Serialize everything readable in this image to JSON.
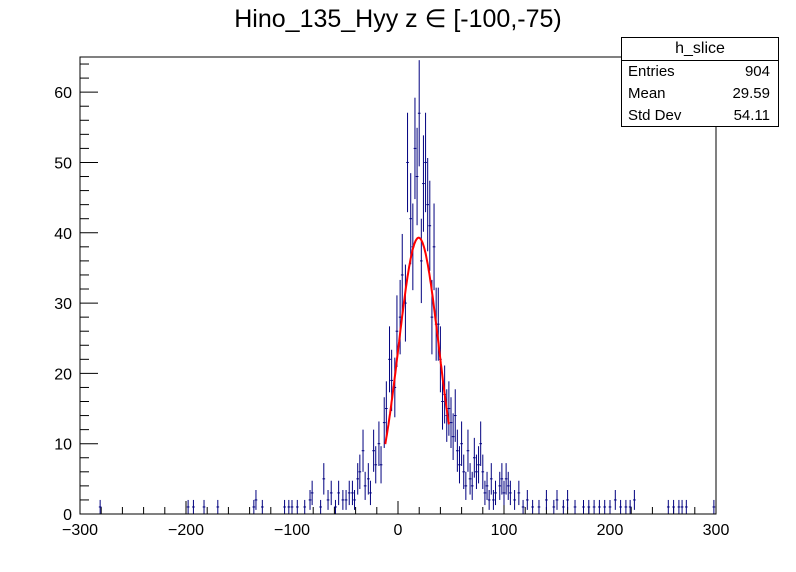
{
  "chart_data": {
    "type": "histogram",
    "title": "Hino_135_Hyy z  ∈ [-100,-75)",
    "xlim": [
      -300,
      300
    ],
    "ylim": [
      0,
      65
    ],
    "x_ticks": [
      -300,
      -200,
      -100,
      0,
      100,
      200,
      300
    ],
    "y_ticks": [
      0,
      10,
      20,
      30,
      40,
      50,
      60
    ],
    "bin_width": 2.5,
    "bins": [
      {
        "x": -281,
        "y": 1
      },
      {
        "x": -198,
        "y": 1
      },
      {
        "x": -193,
        "y": 1
      },
      {
        "x": -183,
        "y": 1
      },
      {
        "x": -170,
        "y": 1
      },
      {
        "x": -136,
        "y": 1
      },
      {
        "x": -134,
        "y": 2
      },
      {
        "x": -128,
        "y": 1
      },
      {
        "x": -107,
        "y": 1
      },
      {
        "x": -103,
        "y": 1
      },
      {
        "x": -100,
        "y": 1
      },
      {
        "x": -95,
        "y": 1
      },
      {
        "x": -88,
        "y": 1
      },
      {
        "x": -83,
        "y": 2
      },
      {
        "x": -81,
        "y": 3
      },
      {
        "x": -73,
        "y": 1
      },
      {
        "x": -70,
        "y": 5
      },
      {
        "x": -66,
        "y": 2
      },
      {
        "x": -63,
        "y": 3
      },
      {
        "x": -59,
        "y": 1
      },
      {
        "x": -56,
        "y": 3
      },
      {
        "x": -52,
        "y": 2
      },
      {
        "x": -49,
        "y": 2
      },
      {
        "x": -46,
        "y": 3
      },
      {
        "x": -43,
        "y": 3
      },
      {
        "x": -41,
        "y": 2
      },
      {
        "x": -38,
        "y": 5
      },
      {
        "x": -36,
        "y": 6
      },
      {
        "x": -33,
        "y": 9
      },
      {
        "x": -31,
        "y": 4
      },
      {
        "x": -28,
        "y": 5
      },
      {
        "x": -26,
        "y": 3
      },
      {
        "x": -23,
        "y": 9
      },
      {
        "x": -21,
        "y": 7
      },
      {
        "x": -18,
        "y": 10
      },
      {
        "x": -16,
        "y": 7
      },
      {
        "x": -13,
        "y": 13
      },
      {
        "x": -11,
        "y": 15
      },
      {
        "x": -8,
        "y": 22
      },
      {
        "x": -6,
        "y": 19
      },
      {
        "x": -3,
        "y": 18
      },
      {
        "x": -1,
        "y": 26
      },
      {
        "x": 2,
        "y": 28
      },
      {
        "x": 4,
        "y": 34
      },
      {
        "x": 7,
        "y": 30
      },
      {
        "x": 9,
        "y": 50
      },
      {
        "x": 12,
        "y": 42
      },
      {
        "x": 14,
        "y": 38
      },
      {
        "x": 16,
        "y": 52
      },
      {
        "x": 18,
        "y": 48
      },
      {
        "x": 20,
        "y": 57
      },
      {
        "x": 22,
        "y": 36
      },
      {
        "x": 24,
        "y": 47
      },
      {
        "x": 26,
        "y": 50
      },
      {
        "x": 28,
        "y": 44
      },
      {
        "x": 30,
        "y": 41
      },
      {
        "x": 32,
        "y": 28
      },
      {
        "x": 34,
        "y": 38
      },
      {
        "x": 36,
        "y": 27
      },
      {
        "x": 38,
        "y": 27
      },
      {
        "x": 40,
        "y": 22
      },
      {
        "x": 42,
        "y": 16
      },
      {
        "x": 44,
        "y": 17
      },
      {
        "x": 46,
        "y": 14
      },
      {
        "x": 48,
        "y": 15
      },
      {
        "x": 50,
        "y": 13
      },
      {
        "x": 52,
        "y": 11
      },
      {
        "x": 54,
        "y": 14
      },
      {
        "x": 56,
        "y": 9
      },
      {
        "x": 58,
        "y": 7
      },
      {
        "x": 60,
        "y": 10
      },
      {
        "x": 62,
        "y": 6
      },
      {
        "x": 64,
        "y": 4
      },
      {
        "x": 66,
        "y": 9
      },
      {
        "x": 68,
        "y": 5
      },
      {
        "x": 70,
        "y": 4
      },
      {
        "x": 72,
        "y": 8
      },
      {
        "x": 74,
        "y": 6
      },
      {
        "x": 76,
        "y": 7
      },
      {
        "x": 78,
        "y": 10
      },
      {
        "x": 80,
        "y": 6
      },
      {
        "x": 82,
        "y": 3
      },
      {
        "x": 84,
        "y": 4
      },
      {
        "x": 86,
        "y": 2
      },
      {
        "x": 88,
        "y": 5
      },
      {
        "x": 90,
        "y": 2
      },
      {
        "x": 92,
        "y": 3
      },
      {
        "x": 96,
        "y": 4
      },
      {
        "x": 98,
        "y": 5
      },
      {
        "x": 100,
        "y": 3
      },
      {
        "x": 102,
        "y": 5
      },
      {
        "x": 104,
        "y": 4
      },
      {
        "x": 106,
        "y": 3
      },
      {
        "x": 110,
        "y": 2
      },
      {
        "x": 114,
        "y": 3
      },
      {
        "x": 118,
        "y": 1
      },
      {
        "x": 122,
        "y": 2
      },
      {
        "x": 127,
        "y": 1
      },
      {
        "x": 133,
        "y": 1
      },
      {
        "x": 140,
        "y": 2
      },
      {
        "x": 147,
        "y": 1
      },
      {
        "x": 150,
        "y": 2
      },
      {
        "x": 156,
        "y": 1
      },
      {
        "x": 160,
        "y": 2
      },
      {
        "x": 167,
        "y": 1
      },
      {
        "x": 175,
        "y": 1
      },
      {
        "x": 180,
        "y": 1
      },
      {
        "x": 185,
        "y": 1
      },
      {
        "x": 190,
        "y": 1
      },
      {
        "x": 195,
        "y": 1
      },
      {
        "x": 200,
        "y": 1
      },
      {
        "x": 205,
        "y": 2
      },
      {
        "x": 210,
        "y": 1
      },
      {
        "x": 215,
        "y": 1
      },
      {
        "x": 219,
        "y": 1
      },
      {
        "x": 223,
        "y": 2
      },
      {
        "x": 255,
        "y": 1
      },
      {
        "x": 260,
        "y": 1
      },
      {
        "x": 265,
        "y": 1
      },
      {
        "x": 268,
        "y": 1
      },
      {
        "x": 272,
        "y": 1
      },
      {
        "x": 298,
        "y": 1
      }
    ],
    "fit": {
      "type": "gaus",
      "constant": 39.3,
      "mean": 19.5,
      "sigma": 19.0,
      "range": [
        -12,
        48
      ],
      "color": "#ff0000"
    },
    "line_color": "#00007f"
  },
  "stats": {
    "name": "h_slice",
    "rows": [
      {
        "label": "Entries",
        "value": "904"
      },
      {
        "label": "Mean",
        "value": "29.59"
      },
      {
        "label": "Std Dev",
        "value": "54.11"
      }
    ]
  }
}
